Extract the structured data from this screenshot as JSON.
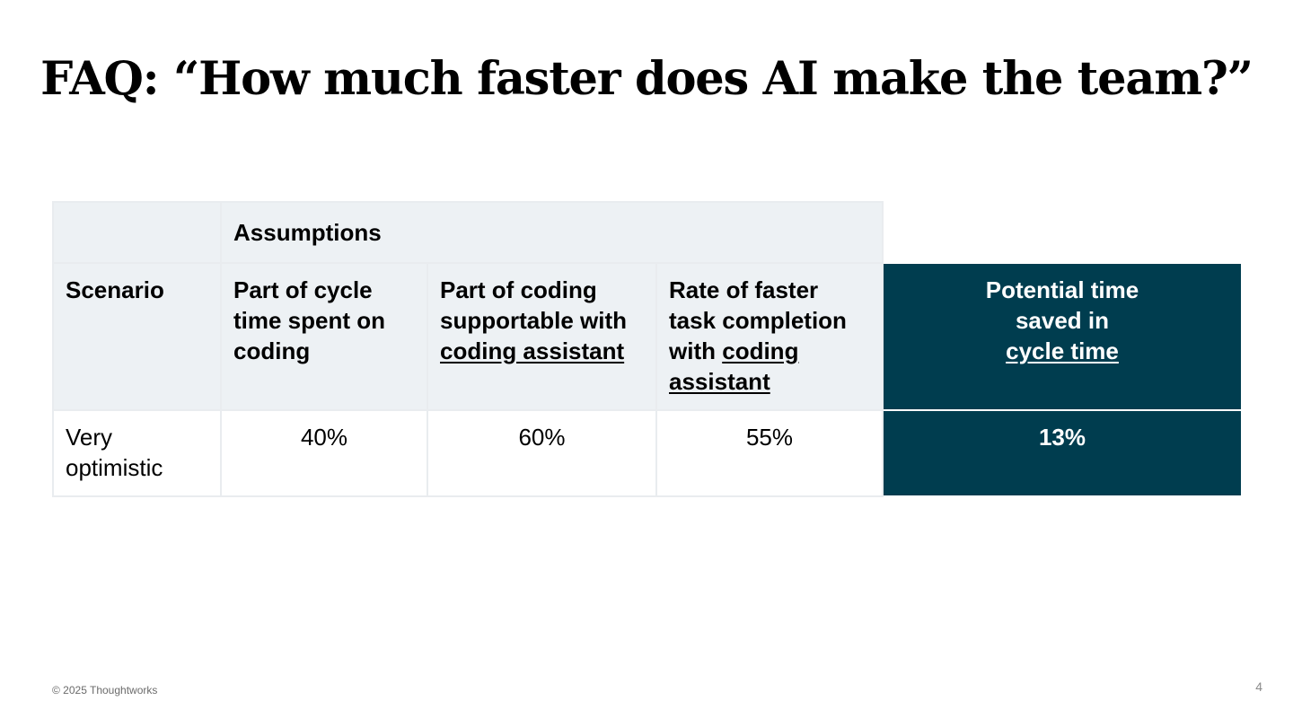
{
  "slide": {
    "title": "FAQ: “How much faster does AI make the team?”",
    "footer": "© 2025 Thoughtworks",
    "page_number": "4"
  },
  "table": {
    "group_header": "Assumptions",
    "headers": {
      "scenario": "Scenario",
      "cycle_part_line1": "Part of cycle time spent on coding",
      "coding_part_prefix": "Part of coding supportable with",
      "coding_part_link": "coding assistant",
      "rate_prefix": "Rate of faster task completion with",
      "rate_link": "coding assistant",
      "result_prefix_1": "Potential time",
      "result_prefix_2": "saved in",
      "result_link": "cycle time"
    },
    "rows": [
      {
        "scenario": "Very optimistic",
        "cycle_part": "40%",
        "coding_part": "60%",
        "rate": "55%",
        "result": "13%"
      }
    ]
  }
}
